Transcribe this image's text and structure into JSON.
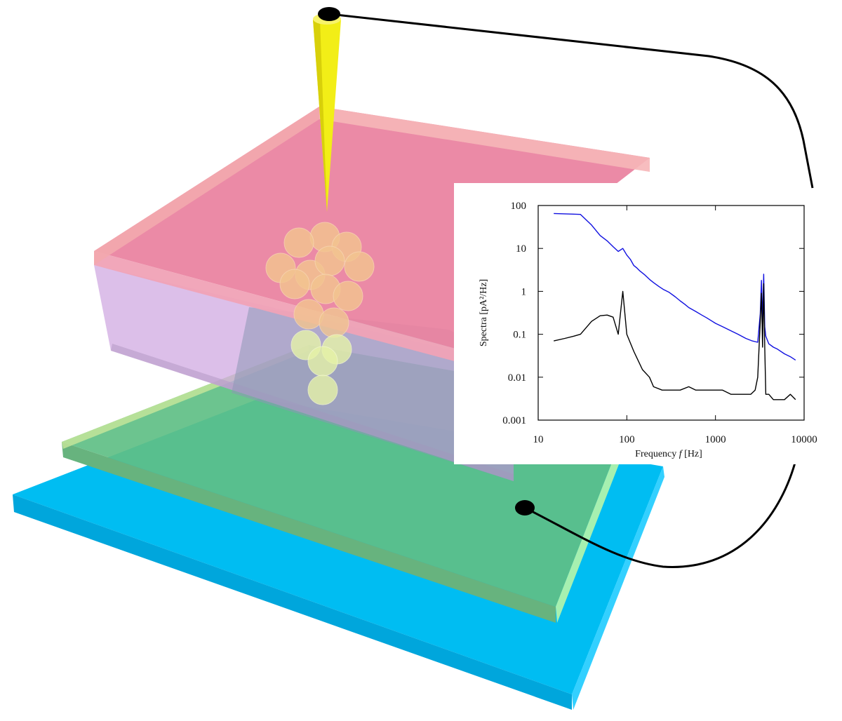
{
  "colors": {
    "tip": "#f2ee17",
    "tip_edge": "#c8c000",
    "substrate_cyan": "#00bdf2",
    "green_layer": "#5fbf86",
    "pink_layer": "#e9809e",
    "purple_block": "#d7b2e6",
    "cluster_orange": "#f3c490",
    "cluster_lightgreen": "#e6f3a8",
    "wire": "#000000",
    "series_blue": "#1010e0",
    "series_black": "#000000"
  },
  "chart_data": {
    "type": "line",
    "title": "",
    "xlabel_prefix": "Frequency ",
    "xlabel_italic": "f",
    "xlabel_suffix": " [Hz]",
    "ylabel": "Spectra [pA²/Hz]",
    "xscale": "log",
    "yscale": "log",
    "xlim": [
      10,
      10000
    ],
    "ylim": [
      0.001,
      100
    ],
    "xticks": [
      {
        "value": 10,
        "label": "10"
      },
      {
        "value": 100,
        "label": "100"
      },
      {
        "value": 1000,
        "label": "1000"
      },
      {
        "value": 10000,
        "label": "10000"
      }
    ],
    "yticks": [
      {
        "value": 100,
        "label": "100"
      },
      {
        "value": 10,
        "label": "10"
      },
      {
        "value": 1,
        "label": "1"
      },
      {
        "value": 0.1,
        "label": "0.1"
      },
      {
        "value": 0.01,
        "label": "0.01"
      },
      {
        "value": 0.001,
        "label": "0.001"
      }
    ],
    "series": [
      {
        "color": "#1010e0",
        "x": [
          15,
          20,
          25,
          30,
          40,
          50,
          60,
          70,
          80,
          90,
          100,
          110,
          120,
          130,
          140,
          160,
          180,
          200,
          230,
          260,
          300,
          350,
          400,
          450,
          500,
          600,
          700,
          800,
          1000,
          1200,
          1500,
          1800,
          2200,
          2600,
          3000,
          3200,
          3300,
          3400,
          3500,
          3600,
          3700,
          4000,
          4500,
          5000,
          6000,
          7000,
          8000
        ],
        "y": [
          65,
          64,
          63,
          62,
          35,
          20,
          15,
          11,
          8.5,
          10,
          7,
          5.5,
          4,
          3.5,
          3,
          2.4,
          1.9,
          1.6,
          1.3,
          1.1,
          0.95,
          0.75,
          0.6,
          0.5,
          0.42,
          0.34,
          0.28,
          0.24,
          0.18,
          0.15,
          0.12,
          0.1,
          0.08,
          0.07,
          0.065,
          0.3,
          1.8,
          0.2,
          2.5,
          0.15,
          0.09,
          0.06,
          0.05,
          0.045,
          0.035,
          0.03,
          0.025
        ]
      },
      {
        "color": "#000000",
        "x": [
          15,
          20,
          25,
          30,
          40,
          50,
          60,
          70,
          80,
          90,
          100,
          120,
          150,
          180,
          200,
          250,
          300,
          400,
          500,
          600,
          800,
          1000,
          1200,
          1500,
          2000,
          2500,
          2800,
          3000,
          3200,
          3300,
          3400,
          3500,
          3600,
          3700,
          4000,
          4500,
          5000,
          6000,
          7000,
          8000
        ],
        "y": [
          0.07,
          0.08,
          0.09,
          0.1,
          0.2,
          0.27,
          0.28,
          0.25,
          0.1,
          1.0,
          0.1,
          0.04,
          0.015,
          0.01,
          0.006,
          0.005,
          0.005,
          0.005,
          0.006,
          0.005,
          0.005,
          0.005,
          0.005,
          0.004,
          0.004,
          0.004,
          0.005,
          0.01,
          0.2,
          0.9,
          0.05,
          1.5,
          0.05,
          0.004,
          0.004,
          0.003,
          0.003,
          0.003,
          0.004,
          0.003
        ]
      }
    ]
  }
}
